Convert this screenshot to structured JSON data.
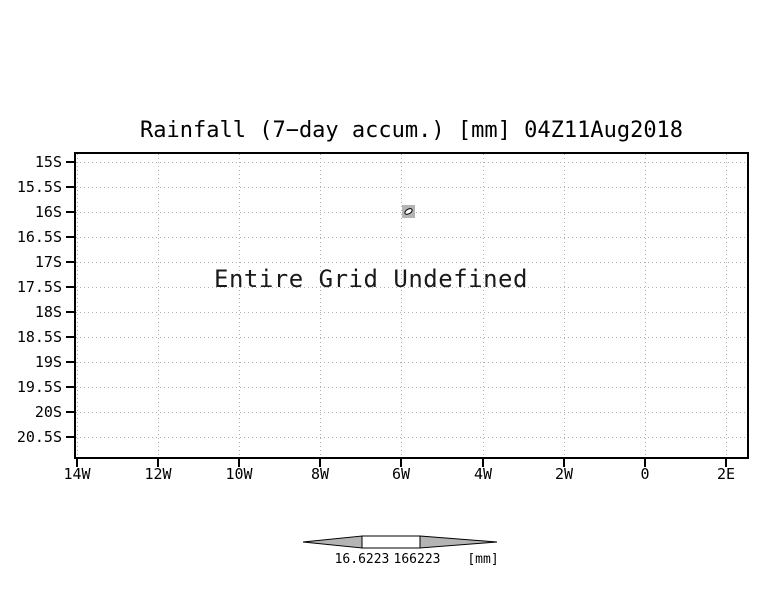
{
  "title": "Rainfall (7−day accum.) [mm] 04Z11Aug2018",
  "plot": {
    "center_message": "Entire Grid Undefined",
    "y_axis_labels": [
      "15S",
      "15.5S",
      "16S",
      "16.5S",
      "17S",
      "17.5S",
      "18S",
      "18.5S",
      "19S",
      "19.5S",
      "20S",
      "20.5S"
    ],
    "x_axis_labels": [
      "14W",
      "12W",
      "10W",
      "8W",
      "6W",
      "4W",
      "2W",
      "0",
      "2E"
    ]
  },
  "colorbar": {
    "min_label": "16.6223",
    "max_label": "166223",
    "units_label": "[mm]",
    "arrow_color": "#b4b4b4",
    "box_color": "#ffffff",
    "outline_color": "#000000"
  },
  "marker": {
    "cell_fill": "#b4b4b4",
    "contour_stroke": "#000000",
    "contour_fill": "#ffffff"
  },
  "colors": {
    "background": "#ffffff",
    "frame": "#000000",
    "gridline": "#b0b0b0",
    "text": "#000000"
  },
  "chart_data": {
    "type": "heatmap",
    "title": "Rainfall (7−day accum.) [mm] 04Z11Aug2018",
    "xlabel": "",
    "ylabel": "",
    "x_ticks": [
      "14W",
      "12W",
      "10W",
      "8W",
      "6W",
      "4W",
      "2W",
      "0",
      "2E"
    ],
    "y_ticks": [
      "15S",
      "15.5S",
      "16S",
      "16.5S",
      "17S",
      "17.5S",
      "18S",
      "18.5S",
      "19S",
      "19.5S",
      "20S",
      "20.5S"
    ],
    "x_range": [
      "14W",
      "2E"
    ],
    "y_range": [
      "20.5S",
      "15S"
    ],
    "grid": true,
    "values": [],
    "annotation": "Entire Grid Undefined",
    "defined_cell": {
      "x": "6W",
      "y": "16S"
    },
    "colorbar_levels": [
      "16.6223",
      "166223"
    ],
    "colorbar_units": "[mm]"
  }
}
